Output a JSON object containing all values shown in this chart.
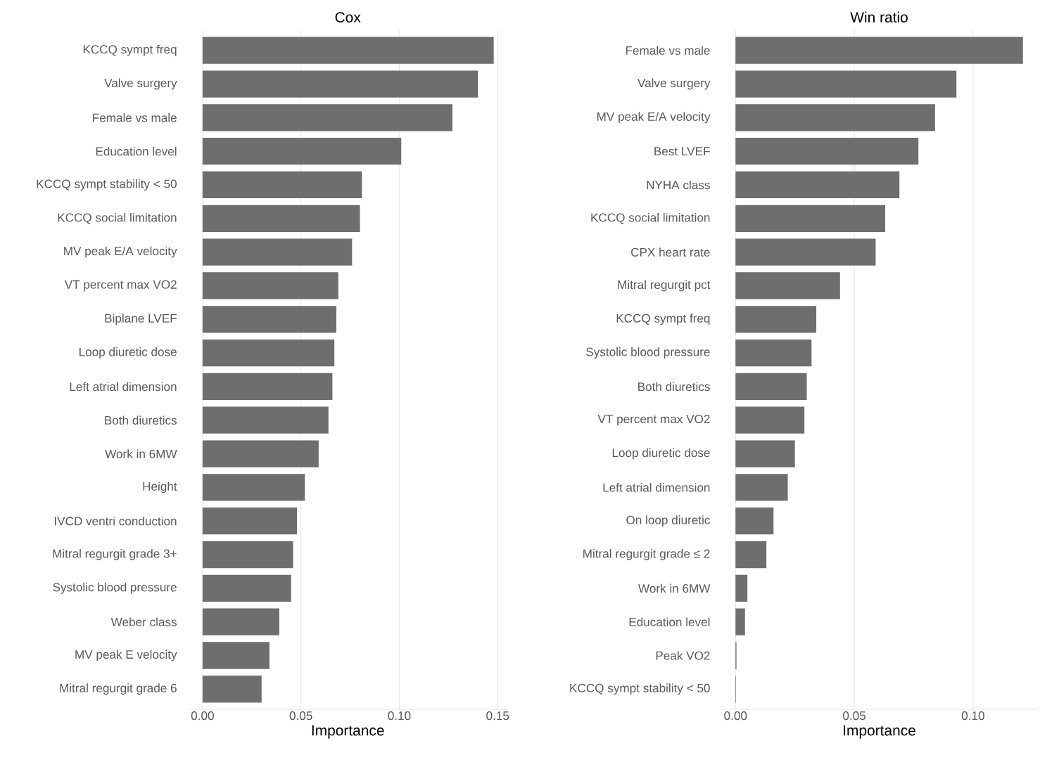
{
  "chart_data": [
    {
      "type": "bar",
      "orientation": "horizontal",
      "title": "Cox",
      "xlabel": "Importance",
      "color": "#6e6e6e",
      "grid": "x",
      "categories": [
        "KCCQ sympt freq",
        "Valve surgery",
        "Female vs male",
        "Education level",
        "KCCQ sympt stability < 50",
        "KCCQ social limitation",
        "MV peak E/A velocity",
        "VT percent max VO2",
        "Biplane LVEF",
        "Loop diuretic dose",
        "Left atrial dimension",
        "Both diuretics",
        "Work in 6MW",
        "Height",
        "IVCD ventri conduction",
        "Mitral regurgit grade 3+",
        "Systolic blood pressure",
        "Weber class",
        "MV peak E velocity",
        "Mitral regurgit grade 6"
      ],
      "xlim": [
        -0.0074,
        0.155
      ],
      "values": [
        0.148,
        0.14,
        0.127,
        0.101,
        0.081,
        0.08,
        0.076,
        0.069,
        0.068,
        0.067,
        0.066,
        0.064,
        0.059,
        0.052,
        0.048,
        0.046,
        0.045,
        0.039,
        0.034,
        0.03
      ],
      "xticks": [
        {
          "value": 0,
          "label": "0.00"
        },
        {
          "value": 0.05,
          "label": "0.05"
        },
        {
          "value": 0.1,
          "label": "0.10"
        },
        {
          "value": 0.15,
          "label": "0.15"
        }
      ]
    },
    {
      "type": "bar",
      "orientation": "horizontal",
      "title": "Win ratio",
      "xlabel": "Importance",
      "color": "#6e6e6e",
      "grid": "x",
      "categories": [
        "Female vs male",
        "Valve surgery",
        "MV peak E/A velocity",
        "Best LVEF",
        "NYHA class",
        "KCCQ social limitation",
        "CPX heart rate",
        "Mitral regurgit pct",
        "KCCQ sympt freq",
        "Systolic blood pressure",
        "Both diuretics",
        "VT percent max VO2",
        "Loop diuretic dose",
        "Left atrial dimension",
        "On loop diuretic",
        "Mitral regurgit grade ≤ 2",
        "Work in 6MW",
        "Education level",
        "Peak VO2",
        "KCCQ sympt stability < 50"
      ],
      "xlim": [
        -0.006,
        0.127
      ],
      "values": [
        0.121,
        0.093,
        0.084,
        0.077,
        0.069,
        0.063,
        0.059,
        0.044,
        0.034,
        0.032,
        0.03,
        0.029,
        0.025,
        0.022,
        0.016,
        0.013,
        0.005,
        0.004,
        0.0004,
        0.0002
      ],
      "xticks": [
        {
          "value": 0,
          "label": "0.00"
        },
        {
          "value": 0.05,
          "label": "0.05"
        },
        {
          "value": 0.1,
          "label": "0.10"
        }
      ]
    }
  ]
}
